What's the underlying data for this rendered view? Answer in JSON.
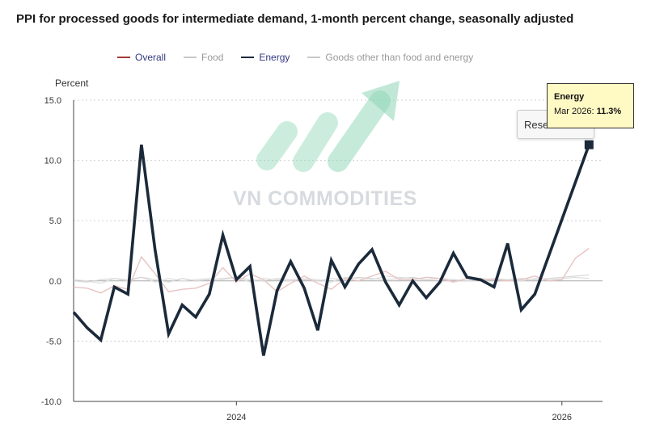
{
  "title": "PPI for processed goods for intermediate demand, 1-month percent change, seasonally adjusted",
  "watermark": "VN COMMODITIES",
  "reset_label": "Reset zoom",
  "tooltip": {
    "series": "Energy",
    "label": "Mar 2026:",
    "value": "11.3%"
  },
  "colors": {
    "overall": "#a43a3a",
    "food": "#c8c8c8",
    "energy": "#1b2a3a",
    "goods": "#c8c8c8"
  },
  "chart_data": {
    "type": "line",
    "title": "PPI for processed goods for intermediate demand, 1-month percent change, seasonally adjusted",
    "xlabel": "",
    "ylabel": "Percent",
    "ylim": [
      -10,
      15
    ],
    "yticks": [
      15.0,
      10.0,
      5.0,
      0.0,
      -5.0,
      -10.0
    ],
    "ytick_labels": [
      "15.0",
      "10.0",
      "5.0",
      "0.0",
      "-5.0",
      "-10.0"
    ],
    "x": [
      "2023-01",
      "2023-02",
      "2023-03",
      "2023-04",
      "2023-05",
      "2023-06",
      "2023-07",
      "2023-08",
      "2023-09",
      "2023-10",
      "2023-11",
      "2023-12",
      "2024-01",
      "2024-02",
      "2024-03",
      "2024-04",
      "2024-05",
      "2024-06",
      "2024-07",
      "2024-08",
      "2024-09",
      "2024-10",
      "2024-11",
      "2024-12",
      "2025-01",
      "2025-02",
      "2025-03",
      "2025-04",
      "2025-05",
      "2025-06",
      "2025-07",
      "2025-08",
      "2025-09",
      "2025-10",
      "2025-11",
      "2025-12",
      "2026-01",
      "2026-02",
      "2026-03"
    ],
    "xticks": [
      {
        "x": "2024-01",
        "label": "2024"
      },
      {
        "x": "2026-01",
        "label": "2026"
      }
    ],
    "legend": [
      "Overall",
      "Food",
      "Energy",
      "Goods other than food and energy"
    ],
    "series": [
      {
        "name": "Overall",
        "values": [
          -0.5,
          -0.6,
          -1.0,
          -0.4,
          -0.7,
          2.0,
          0.6,
          -0.9,
          -0.7,
          -0.6,
          -0.2,
          1.1,
          -0.1,
          0.6,
          0.1,
          -0.9,
          -0.2,
          0.4,
          -0.2,
          -0.7,
          0.2,
          0.0,
          0.4,
          0.8,
          0.1,
          0.1,
          0.3,
          0.2,
          -0.1,
          0.2,
          0.1,
          0.1,
          0.0,
          0.1,
          0.4,
          0.0,
          0.1,
          1.9,
          2.7
        ]
      },
      {
        "name": "Food",
        "values": [
          0.1,
          0.0,
          -0.2,
          0.2,
          0.1,
          0.3,
          -0.1,
          0.2,
          0.0,
          0.1,
          0.2,
          0.1,
          0.3,
          -0.1,
          0.2,
          0.1,
          0.0,
          0.2,
          0.1,
          -0.1,
          0.3,
          0.2,
          0.1,
          0.4,
          0.3,
          0.2,
          0.1,
          0.2,
          0.1,
          0.0,
          0.1,
          0.2,
          0.1,
          0.0,
          0.2,
          0.1,
          0.2,
          0.3,
          0.2
        ]
      },
      {
        "name": "Energy",
        "values": [
          -2.6,
          -3.9,
          -4.9,
          -0.5,
          -1.1,
          11.3,
          2.6,
          -4.4,
          -2.0,
          -3.0,
          -1.1,
          3.8,
          0.1,
          1.2,
          -6.2,
          -0.8,
          1.6,
          -0.6,
          -4.1,
          1.7,
          -0.5,
          1.4,
          2.6,
          -0.1,
          -2.0,
          0.0,
          -1.4,
          -0.1,
          2.3,
          0.3,
          0.1,
          -0.5,
          3.1,
          -2.4,
          -1.1,
          null,
          null,
          null,
          11.3
        ]
      },
      {
        "name": "Goods other than food and energy",
        "values": [
          0.0,
          -0.1,
          0.1,
          0.2,
          0.0,
          0.3,
          0.1,
          -0.1,
          0.2,
          0.0,
          0.1,
          0.2,
          0.3,
          0.1,
          0.0,
          0.2,
          0.1,
          0.1,
          0.0,
          0.2,
          0.1,
          0.3,
          0.2,
          0.1,
          0.2,
          0.3,
          0.1,
          0.2,
          0.1,
          0.0,
          0.2,
          0.1,
          0.1,
          0.2,
          0.1,
          0.2,
          0.3,
          0.4,
          0.5
        ]
      }
    ],
    "highlight": {
      "series": "Energy",
      "x": "2026-03",
      "value": 11.3
    }
  }
}
